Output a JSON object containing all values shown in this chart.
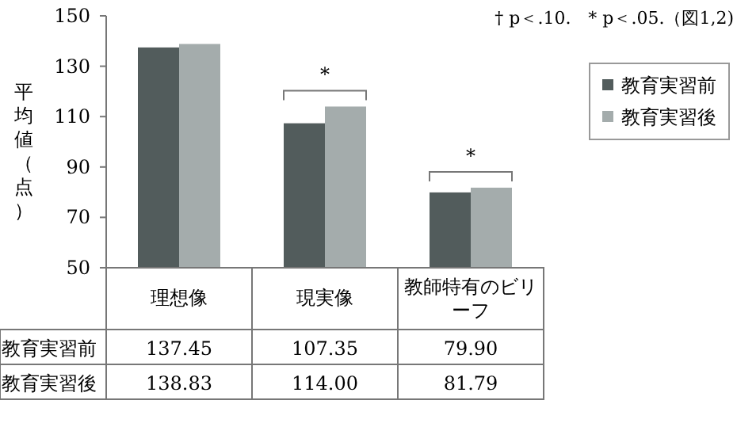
{
  "chart_data": {
    "type": "bar",
    "ylabel": "平均値（点）",
    "categories": [
      "理想像",
      "現実像",
      "教師特有のビリーフ"
    ],
    "series": [
      {
        "name": "教育実習前",
        "color": "#525c5c",
        "values": [
          137.45,
          107.35,
          79.9
        ],
        "value_labels": [
          "137.45",
          "107.35",
          "79.90"
        ]
      },
      {
        "name": "教育実習後",
        "color": "#a4acac",
        "values": [
          138.83,
          114.0,
          81.79
        ],
        "value_labels": [
          "138.83",
          "114.00",
          "81.79"
        ]
      }
    ],
    "ylim": [
      50,
      150
    ],
    "yticks": [
      50,
      70,
      90,
      110,
      130,
      150
    ],
    "legend": "right",
    "grid": false,
    "annotations": [
      "† p＜.10.　* p＜.05.（図1,2)",
      "*",
      "*"
    ]
  }
}
